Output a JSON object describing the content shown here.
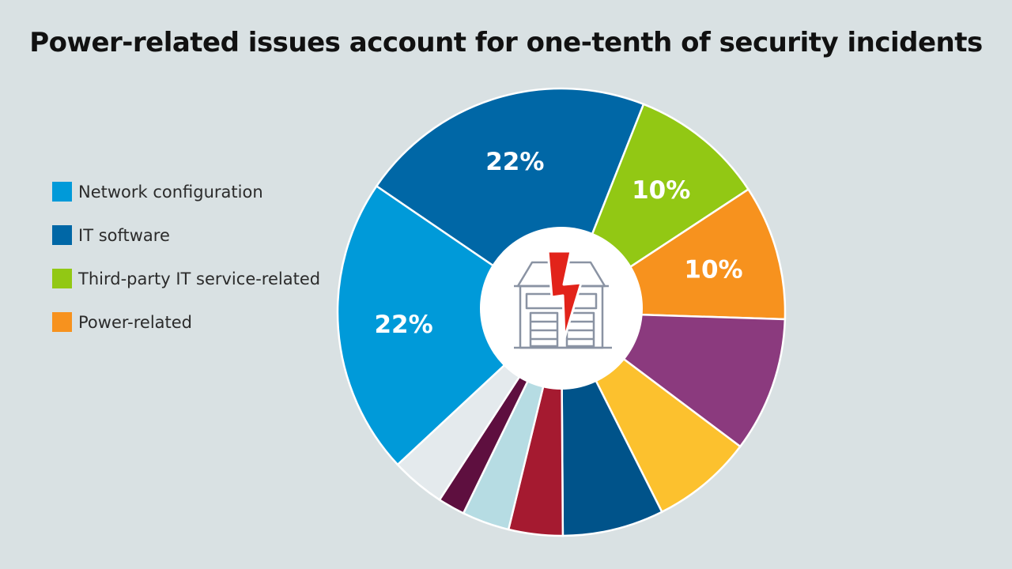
{
  "chart_data": {
    "type": "pie",
    "title": "Power-related issues account for one-tenth of  security incidents",
    "legend": [
      {
        "label": "Network configuration",
        "color": "#009ad9"
      },
      {
        "label": "IT software",
        "color": "#0067a6"
      },
      {
        "label": "Third-party IT service-related",
        "color": "#92c814"
      },
      {
        "label": "Power-related",
        "color": "#f7921e"
      }
    ],
    "legend_placement": "left",
    "center_icon": "building-with-lightning-icon",
    "slices": [
      {
        "value": 22,
        "label": "22%",
        "color": "#0067a6"
      },
      {
        "value": 10,
        "label": "10%",
        "color": "#92c814"
      },
      {
        "value": 10,
        "label": "10%",
        "color": "#f7921e"
      },
      {
        "value": 10,
        "label": "",
        "color": "#8b3a7e"
      },
      {
        "value": 7.5,
        "label": "",
        "color": "#fcc12e"
      },
      {
        "value": 7.5,
        "label": "",
        "color": "#00538a"
      },
      {
        "value": 4,
        "label": "",
        "color": "#a51a30"
      },
      {
        "value": 3.5,
        "label": "",
        "color": "#b6dce3"
      },
      {
        "value": 2,
        "label": "",
        "color": "#5e0f3f"
      },
      {
        "value": 4,
        "label": "",
        "color": "#e4eaed"
      },
      {
        "value": 22,
        "label": "22%",
        "color": "#009ad9"
      }
    ]
  }
}
